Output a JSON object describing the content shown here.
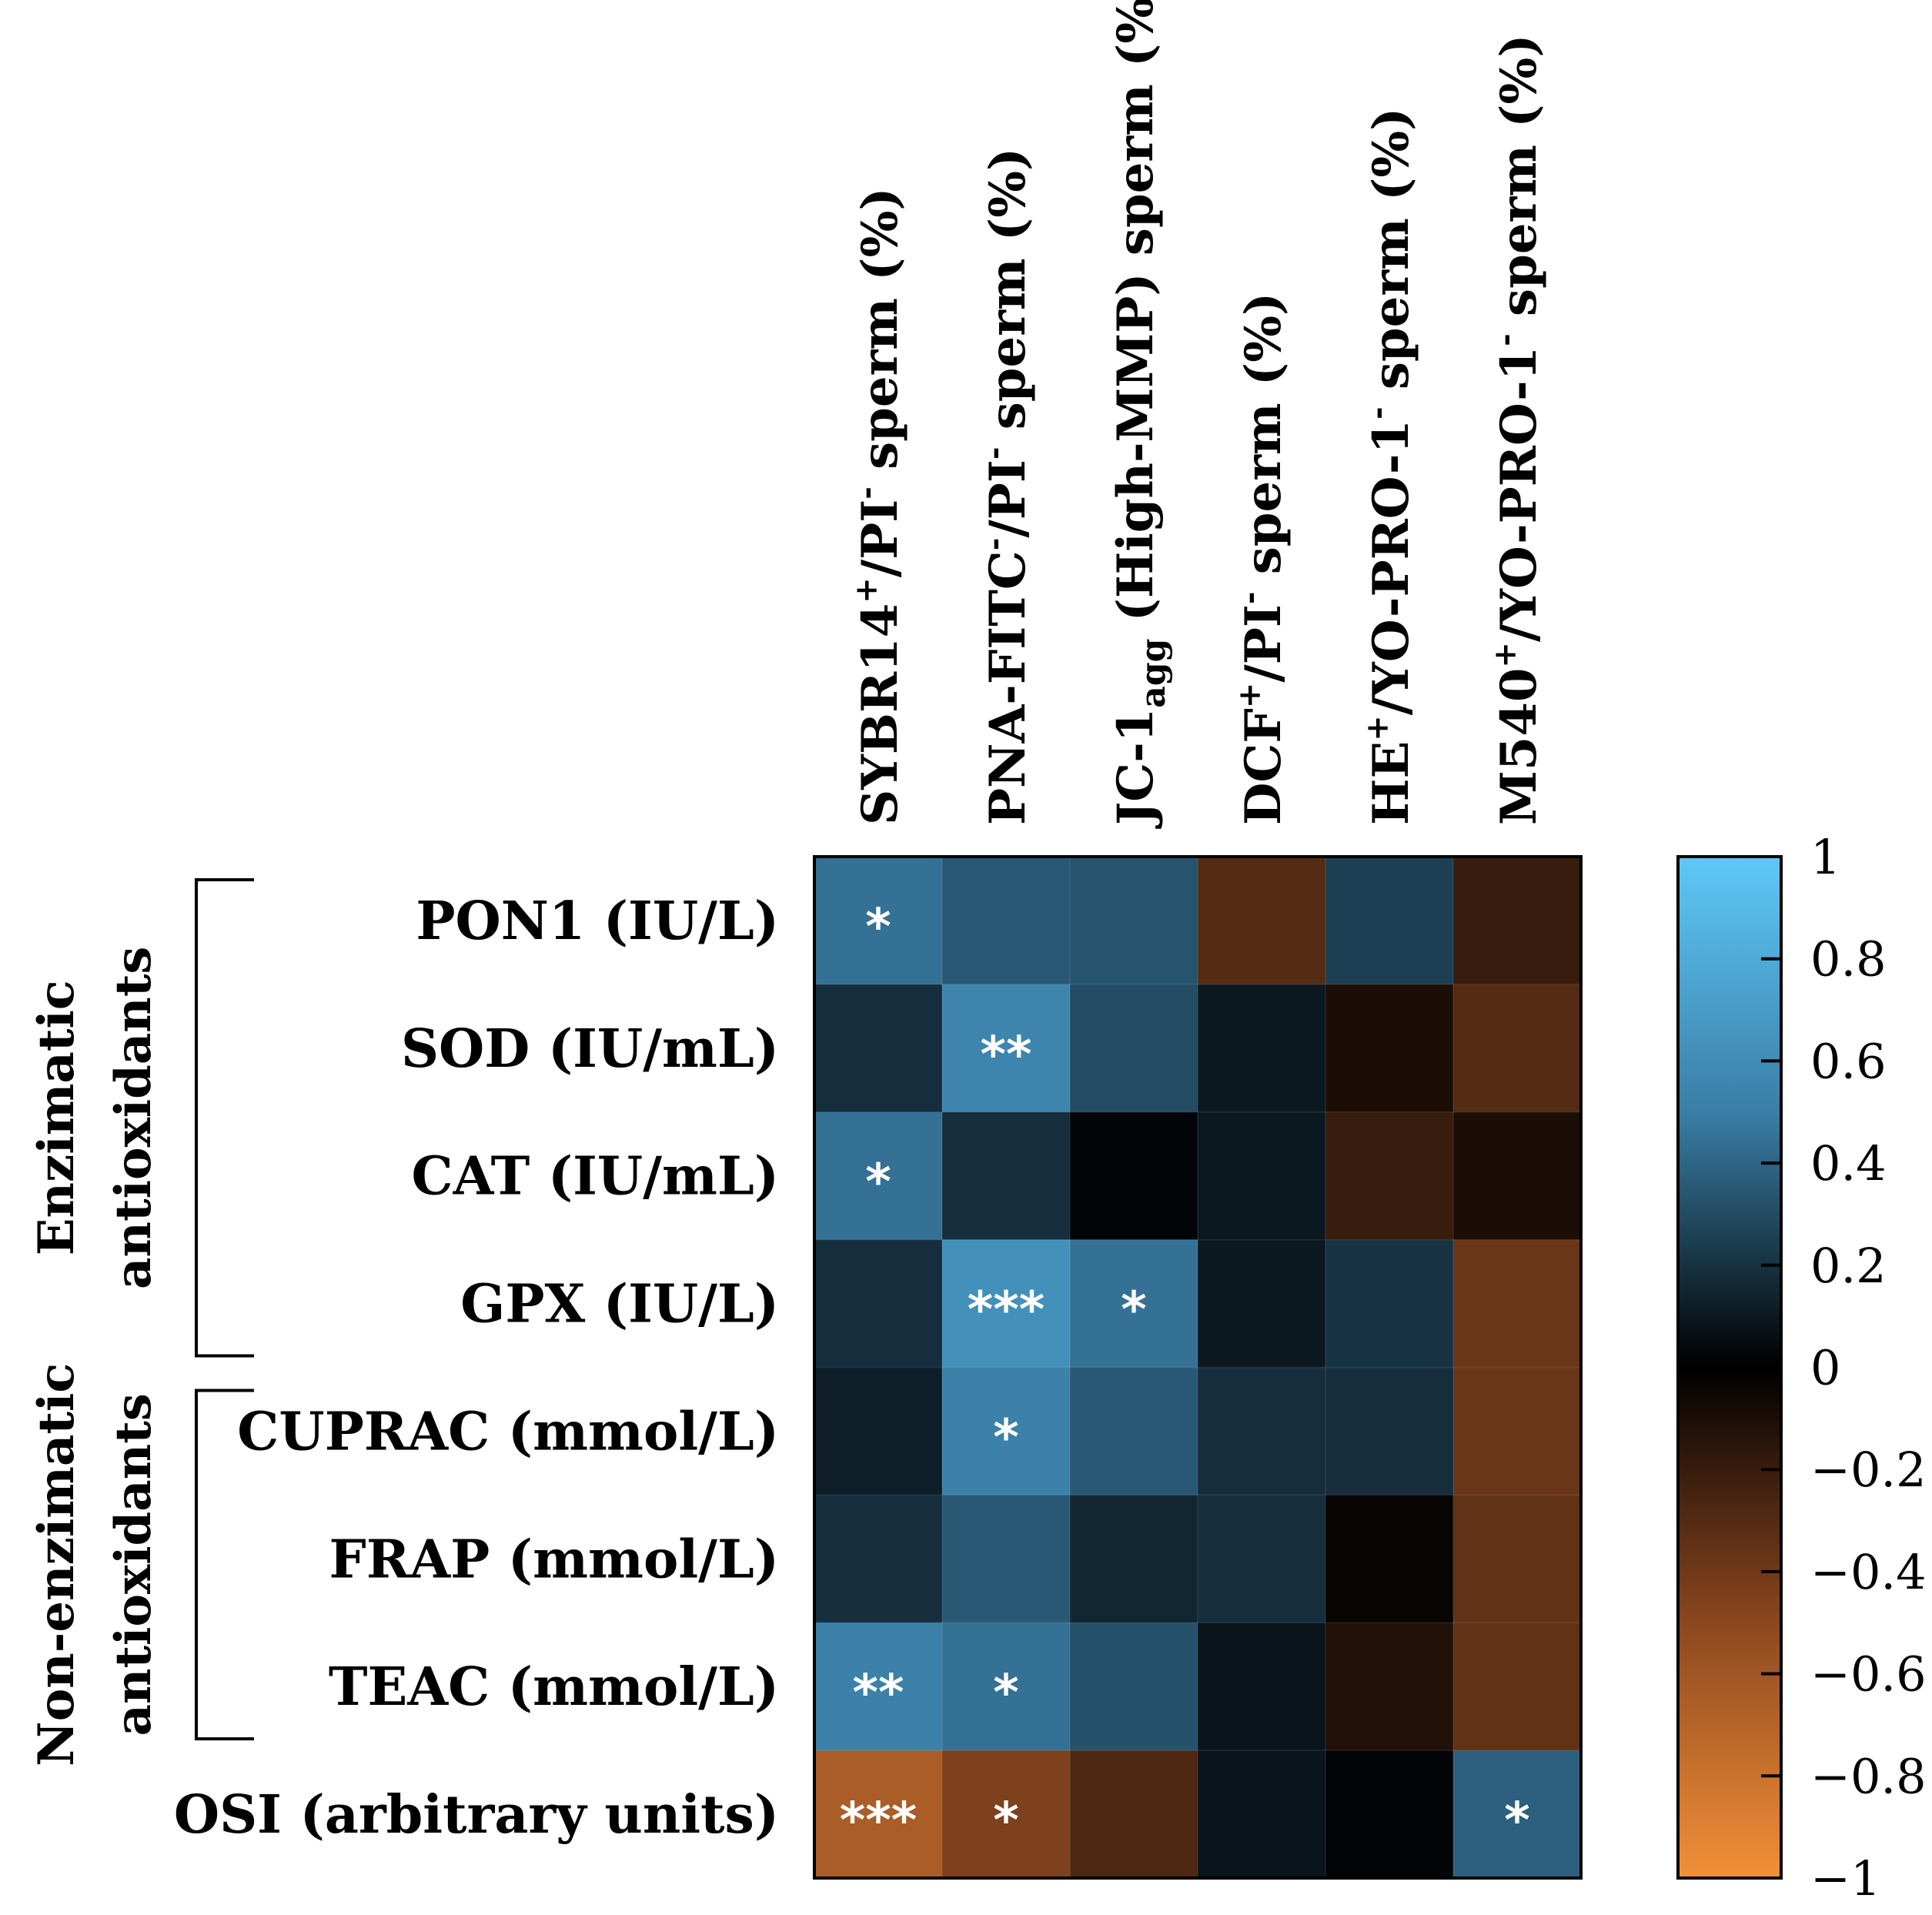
{
  "chart_data": {
    "type": "heatmap",
    "columns": [
      {
        "base": "SYBR14",
        "sup1": "+",
        "mid": "/PI",
        "sup2": "-",
        "tail": " sperm (%)"
      },
      {
        "base": "PNA-FITC",
        "sup1": "-",
        "mid": "/PI",
        "sup2": "-",
        "tail": " sperm (%)"
      },
      {
        "base": "JC-1",
        "sub": "agg",
        "tail": " (High-MMP) sperm (%)"
      },
      {
        "base": "DCF",
        "sup1": "+",
        "mid": "/PI",
        "sup2": "-",
        "tail": " sperm (%)"
      },
      {
        "base": "HE",
        "sup1": "+",
        "mid": "/YO-PRO-1",
        "sup2": "-",
        "tail": " sperm (%)"
      },
      {
        "base": "M540",
        "sup1": "+",
        "mid": "/YO-PRO-1",
        "sup2": "-",
        "tail": " sperm (%)"
      }
    ],
    "rows": [
      "PON1 (IU/L)",
      "SOD (IU/mL)",
      "CAT (IU/mL)",
      "GPX (IU/L)",
      "CUPRAC (mmol/L)",
      "FRAP (mmol/L)",
      "TEAC (mmol/L)",
      "OSI (arbitrary units)"
    ],
    "groups": [
      {
        "lines": [
          "Enzimatic",
          "antioxidants"
        ],
        "row_start": 0,
        "row_end": 3
      },
      {
        "lines": [
          "Non-enzimatic",
          "antioxidants"
        ],
        "row_start": 4,
        "row_end": 6
      }
    ],
    "values": [
      [
        0.45,
        0.35,
        0.33,
        -0.3,
        0.25,
        -0.2
      ],
      [
        0.18,
        0.55,
        0.3,
        0.1,
        -0.1,
        -0.3
      ],
      [
        0.45,
        0.18,
        0.02,
        0.1,
        -0.2,
        -0.1
      ],
      [
        0.18,
        0.62,
        0.45,
        0.1,
        0.2,
        -0.38
      ],
      [
        0.12,
        0.52,
        0.35,
        0.18,
        0.18,
        -0.38
      ],
      [
        0.18,
        0.35,
        0.15,
        0.18,
        -0.03,
        -0.35
      ],
      [
        0.52,
        0.45,
        0.32,
        0.08,
        -0.12,
        -0.35
      ],
      [
        -0.65,
        -0.45,
        -0.28,
        0.08,
        0.02,
        0.38
      ]
    ],
    "significance": [
      [
        "*",
        "",
        "",
        "",
        "",
        ""
      ],
      [
        "",
        "**",
        "",
        "",
        "",
        ""
      ],
      [
        "*",
        "",
        "",
        "",
        "",
        ""
      ],
      [
        "",
        "***",
        "*",
        "",
        "",
        ""
      ],
      [
        "",
        "*",
        "",
        "",
        "",
        ""
      ],
      [
        "",
        "",
        "",
        "",
        "",
        ""
      ],
      [
        "**",
        "*",
        "",
        "",
        "",
        ""
      ],
      [
        "***",
        "*",
        "",
        "",
        "",
        "*"
      ]
    ],
    "colorbar": {
      "min": -1,
      "max": 1,
      "ticks": [
        1,
        0.8,
        0.6,
        0.4,
        0.2,
        0,
        -0.2,
        -0.4,
        -0.6,
        -0.8,
        -1
      ],
      "tick_labels": [
        "1",
        "0.8",
        "0.6",
        "0.4",
        "0.2",
        "0",
        "−0.2",
        "−0.4",
        "−0.6",
        "−0.8",
        "−1"
      ],
      "stops": [
        {
          "v": 1,
          "color": "#5ec8f8"
        },
        {
          "v": 0.5,
          "color": "#3a7ea6"
        },
        {
          "v": 0,
          "color": "#000000"
        },
        {
          "v": -0.5,
          "color": "#8c4720"
        },
        {
          "v": -1,
          "color": "#f39038"
        }
      ]
    }
  }
}
